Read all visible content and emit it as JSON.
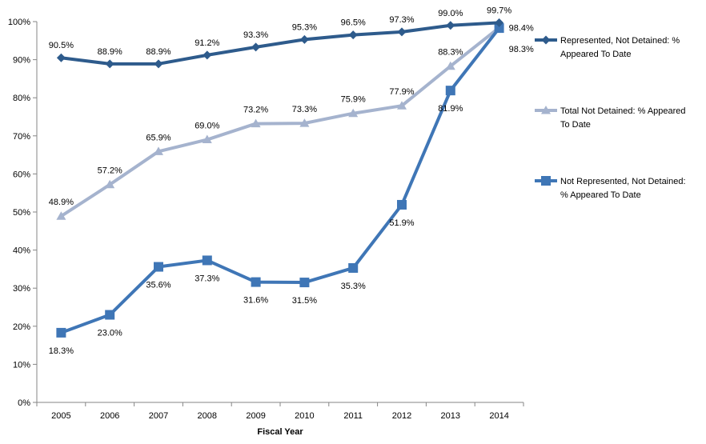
{
  "chart_data": {
    "type": "line",
    "title": "",
    "xlabel": "Fiscal Year",
    "ylabel": "",
    "x": [
      "2005",
      "2006",
      "2007",
      "2008",
      "2009",
      "2010",
      "2011",
      "2012",
      "2013",
      "2014"
    ],
    "ylim": [
      0,
      100
    ],
    "yticks": [
      "0%",
      "10%",
      "20%",
      "30%",
      "40%",
      "50%",
      "60%",
      "70%",
      "80%",
      "90%",
      "100%"
    ],
    "grid": false,
    "legend_position": "right",
    "series": [
      {
        "name": "Represented, Not Detained: % Appeared To Date",
        "legend_lines": [
          "Represented, Not Detained: %",
          "Appeared To Date"
        ],
        "marker": "diamond",
        "color": "#2E5B8C",
        "values": [
          90.5,
          88.9,
          88.9,
          91.2,
          93.3,
          95.3,
          96.5,
          97.3,
          99.0,
          99.7
        ],
        "labels": [
          "90.5%",
          "88.9%",
          "88.9%",
          "91.2%",
          "93.3%",
          "95.3%",
          "96.5%",
          "97.3%",
          "99.0%",
          "99.7%"
        ]
      },
      {
        "name": "Total Not Detained: % Appeared To Date",
        "legend_lines": [
          "Total Not Detained: % Appeared",
          "To Date"
        ],
        "marker": "triangle",
        "color": "#A5B3CE",
        "values": [
          48.9,
          57.2,
          65.9,
          69.0,
          73.2,
          73.3,
          75.9,
          77.9,
          88.3,
          98.4
        ],
        "labels": [
          "48.9%",
          "57.2%",
          "65.9%",
          "69.0%",
          "73.2%",
          "73.3%",
          "75.9%",
          "77.9%",
          "88.3%",
          "98.4%"
        ]
      },
      {
        "name": "Not Represented, Not Detained: % Appeared To Date",
        "legend_lines": [
          "Not Represented, Not Detained:",
          "% Appeared To Date"
        ],
        "marker": "square",
        "color": "#3F76B6",
        "values": [
          18.3,
          23.0,
          35.6,
          37.3,
          31.6,
          31.5,
          35.3,
          51.9,
          81.9,
          98.3
        ],
        "labels": [
          "18.3%",
          "23.0%",
          "35.6%",
          "37.3%",
          "31.6%",
          "31.5%",
          "35.3%",
          "51.9%",
          "81.9%",
          "98.3%"
        ]
      }
    ]
  }
}
